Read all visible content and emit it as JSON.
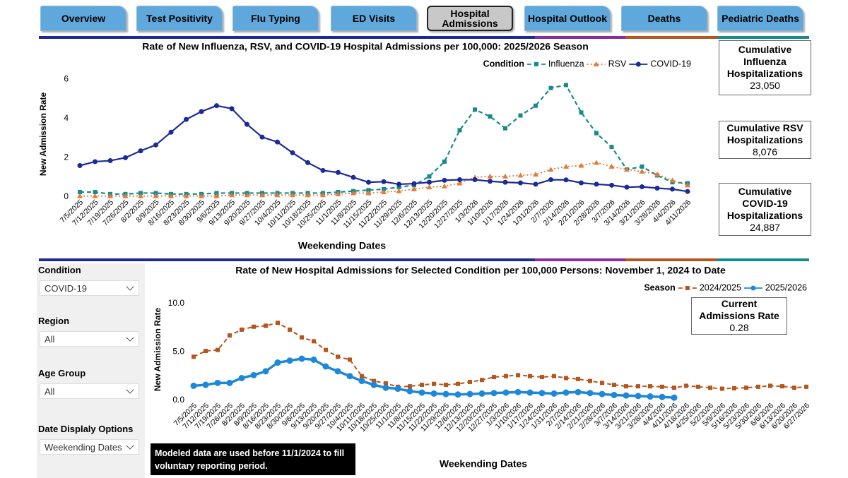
{
  "tabs": [
    "Overview",
    "Test Positivity",
    "Flu Typing",
    "ED Visits",
    "Hospital Admissions",
    "Hospital Outlook",
    "Deaths",
    "Pediatric Deaths"
  ],
  "active_tab": 4,
  "cards": [
    {
      "label": "Cumulative Influenza Hospitalizations",
      "value": "23,050"
    },
    {
      "label": "Cumulative RSV Hospitalizations",
      "value": "8,076"
    },
    {
      "label": "Cumulative COVID-19 Hospitalizations",
      "value": "24,887"
    },
    {
      "label": "Current Admissions Rate",
      "value": "0.28"
    }
  ],
  "filters": [
    {
      "label": "Condition",
      "value": "COVID-19"
    },
    {
      "label": "Region",
      "value": "All"
    },
    {
      "label": "Age Group",
      "value": "All"
    },
    {
      "label": "Date Displaly Options",
      "value": "Weekending Dates"
    }
  ],
  "note": "Modeled data are used before 11/1/2024 to fill voluntary reporting period.",
  "chart_data": [
    {
      "type": "line",
      "title": "Rate of New Influenza, RSV, and COVID-19 Hospital Admissions per 100,000: 2025/2026 Season",
      "x_label": "Weekending Dates",
      "y_label": "New Admission Rate",
      "legend_title": "Condition",
      "categories": [
        "7/5/2025",
        "7/12/2025",
        "7/19/2025",
        "7/26/2025",
        "8/2/2025",
        "8/9/2025",
        "8/16/2025",
        "8/23/2025",
        "8/30/2025",
        "9/6/2025",
        "9/13/2025",
        "9/20/2025",
        "9/27/2025",
        "10/4/2025",
        "10/11/2025",
        "10/18/2025",
        "10/25/2025",
        "11/1/2025",
        "11/8/2025",
        "11/15/2025",
        "11/22/2025",
        "11/29/2025",
        "12/6/2025",
        "12/13/2025",
        "12/20/2025",
        "12/27/2025",
        "1/3/2026",
        "1/10/2026",
        "1/17/2026",
        "1/24/2026",
        "1/31/2026",
        "2/7/2026",
        "2/14/2026",
        "2/21/2026",
        "2/28/2026",
        "3/7/2026",
        "3/14/2026",
        "3/21/2026",
        "3/28/2026",
        "4/4/2026",
        "4/11/2026"
      ],
      "series": [
        {
          "name": "Influenza",
          "color": "#178b8b",
          "line_style": "dashed",
          "marker": "square",
          "values": [
            0.25,
            0.25,
            0.15,
            0.15,
            0.2,
            0.2,
            0.15,
            0.15,
            0.15,
            0.2,
            0.2,
            0.2,
            0.2,
            0.2,
            0.2,
            0.2,
            0.2,
            0.25,
            0.3,
            0.35,
            0.4,
            0.5,
            0.6,
            1.05,
            1.8,
            3.4,
            4.45,
            4.1,
            3.5,
            4.15,
            4.65,
            5.55,
            5.7,
            4.3,
            3.25,
            2.55,
            1.4,
            1.55,
            1.1,
            0.75,
            0.7
          ]
        },
        {
          "name": "RSV",
          "color": "#e07b39",
          "line_style": "dotted",
          "marker": "triangle",
          "values": [
            0.05,
            0.05,
            0.05,
            0.05,
            0.05,
            0.05,
            0.05,
            0.05,
            0.05,
            0.05,
            0.1,
            0.1,
            0.1,
            0.1,
            0.1,
            0.1,
            0.1,
            0.15,
            0.2,
            0.2,
            0.25,
            0.3,
            0.4,
            0.5,
            0.55,
            0.7,
            1.0,
            1.05,
            1.05,
            1.1,
            1.15,
            1.4,
            1.55,
            1.6,
            1.75,
            1.55,
            1.4,
            1.3,
            1.15,
            0.85,
            0.6
          ]
        },
        {
          "name": "COVID-19",
          "color": "#1b2a96",
          "line_style": "solid",
          "marker": "circle",
          "values": [
            1.6,
            1.8,
            1.85,
            2.0,
            2.35,
            2.65,
            3.3,
            3.95,
            4.35,
            4.65,
            4.5,
            3.7,
            3.05,
            2.8,
            2.25,
            1.75,
            1.35,
            1.25,
            1.0,
            0.75,
            0.78,
            0.65,
            0.68,
            0.75,
            0.85,
            0.88,
            0.88,
            0.8,
            0.75,
            0.72,
            0.65,
            0.88,
            0.87,
            0.72,
            0.65,
            0.6,
            0.5,
            0.52,
            0.45,
            0.4,
            0.28
          ]
        }
      ],
      "ylim": [
        0,
        6.4
      ],
      "yticks": [
        0,
        2,
        4,
        6
      ],
      "grid": false
    },
    {
      "type": "line",
      "title": "Rate of New Hospital Admissions for Selected Condition per 100,000 Persons: November 1, 2024 to Date",
      "x_label": "Weekending Dates",
      "y_label": "New Admission Rate",
      "legend_title": "Season",
      "categories": [
        "7/5/2025",
        "7/12/2025",
        "7/19/2025",
        "7/26/2025",
        "8/2/2025",
        "8/9/2025",
        "8/16/2025",
        "8/23/2025",
        "8/30/2025",
        "9/6/2025",
        "9/13/2025",
        "9/20/2025",
        "9/27/2025",
        "10/4/2025",
        "10/11/2025",
        "10/18/2025",
        "10/25/2025",
        "11/1/2025",
        "11/8/2025",
        "11/15/2025",
        "11/22/2025",
        "11/29/2025",
        "12/6/2025",
        "12/13/2025",
        "12/20/2025",
        "12/27/2025",
        "1/3/2026",
        "1/10/2026",
        "1/17/2026",
        "1/24/2026",
        "1/31/2026",
        "2/7/2026",
        "2/14/2026",
        "2/21/2026",
        "2/28/2026",
        "3/7/2026",
        "3/14/2026",
        "3/21/2026",
        "3/28/2026",
        "4/4/2026",
        "4/11/2026",
        "4/18/2026",
        "4/25/2026",
        "5/2/2026",
        "5/9/2026",
        "5/16/2026",
        "5/23/2026",
        "5/30/2026",
        "6/6/2026",
        "6/13/2026",
        "6/20/2026",
        "6/27/2026"
      ],
      "series": [
        {
          "name": "2024/2025",
          "color": "#b5561e",
          "line_style": "dashed",
          "marker": "square",
          "values": [
            4.5,
            5.1,
            5.2,
            6.7,
            7.3,
            7.6,
            7.7,
            8.0,
            7.3,
            6.5,
            6.1,
            5.2,
            4.5,
            4.2,
            2.5,
            2.0,
            1.75,
            1.4,
            1.45,
            1.6,
            1.7,
            1.6,
            1.7,
            1.9,
            2.1,
            2.4,
            2.5,
            2.6,
            2.5,
            2.4,
            2.5,
            2.3,
            2.2,
            2.0,
            1.8,
            1.6,
            1.45,
            1.45,
            1.45,
            1.4,
            1.3,
            1.5,
            1.4,
            1.3,
            1.2,
            1.25,
            1.3,
            1.4,
            1.5,
            1.45,
            1.3,
            1.4
          ]
        },
        {
          "name": "2025/2026",
          "color": "#1e88d8",
          "line_style": "solid",
          "marker": "circle",
          "values": [
            1.5,
            1.6,
            1.8,
            1.8,
            2.3,
            2.6,
            3.0,
            3.9,
            4.1,
            4.3,
            4.2,
            3.5,
            3.0,
            2.5,
            2.0,
            1.6,
            1.3,
            1.2,
            0.95,
            0.8,
            0.7,
            0.65,
            0.6,
            0.65,
            0.7,
            0.75,
            0.8,
            0.85,
            0.8,
            0.75,
            0.7,
            0.8,
            0.85,
            0.75,
            0.65,
            0.55,
            0.5,
            0.45,
            0.4,
            0.35,
            0.28,
            null,
            null,
            null,
            null,
            null,
            null,
            null,
            null,
            null,
            null,
            null
          ]
        }
      ],
      "ylim": [
        0,
        10.5
      ],
      "yticks": [
        {
          "value": 0,
          "label": "0.0"
        },
        {
          "value": 5,
          "label": "5.0"
        },
        {
          "value": 10,
          "label": "10.0"
        }
      ],
      "grid": false
    }
  ]
}
